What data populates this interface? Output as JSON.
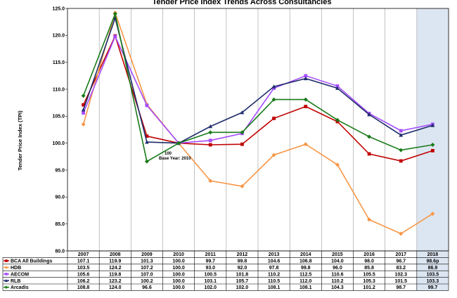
{
  "chart_data": {
    "type": "line",
    "title": "Tender Price Index Trends Across Consultancies",
    "ylabel": "Tender Price Index (TPI)",
    "ylim": [
      80,
      125
    ],
    "yticks": [
      "80.0",
      "85.0",
      "90.0",
      "95.0",
      "100.0",
      "105.0",
      "110.0",
      "115.0",
      "120.0",
      "125.0"
    ],
    "categories": [
      "2007",
      "2008",
      "2009",
      "2010",
      "2011",
      "2012",
      "2013",
      "2014",
      "2015",
      "2016",
      "2017",
      "2018"
    ],
    "highlight_category": "2018",
    "annotation": {
      "category": "2010",
      "line1": "100",
      "line2": "Base Year: 2010"
    },
    "series": [
      {
        "name": "BCA All Buildings",
        "color": "#c00000",
        "marker": "square",
        "values": [
          107.1,
          119.9,
          101.3,
          100.0,
          99.7,
          99.8,
          104.6,
          106.8,
          104.0,
          98.0,
          96.7,
          98.6
        ],
        "labels": [
          "107.1",
          "119.9",
          "101.3",
          "100.0",
          "99.7",
          "99.8",
          "104.6",
          "106.8",
          "104.0",
          "98.0",
          "96.7",
          "98.6p"
        ]
      },
      {
        "name": "HDB",
        "color": "#f79646",
        "marker": "diamond",
        "values": [
          103.5,
          124.2,
          107.2,
          100.0,
          93.0,
          92.0,
          97.8,
          99.8,
          96.0,
          85.8,
          83.2,
          86.9
        ],
        "labels": [
          "103.5",
          "124.2",
          "107.2",
          "100.0",
          "93.0",
          "92.0",
          "97.8",
          "99.8",
          "96.0",
          "85.8",
          "83.2",
          "86.9"
        ]
      },
      {
        "name": "AECOM",
        "color": "#a64dff",
        "marker": "square",
        "values": [
          105.6,
          119.8,
          107.0,
          100.0,
          100.5,
          101.8,
          110.2,
          112.5,
          110.6,
          105.5,
          102.3,
          103.5
        ],
        "labels": [
          "105.6",
          "119.8",
          "107.0",
          "100.0",
          "100.5",
          "101.8",
          "110.2",
          "112.5",
          "110.6",
          "105.5",
          "102.3",
          "103.5"
        ]
      },
      {
        "name": "RLB",
        "color": "#1f2d6b",
        "marker": "triangle",
        "values": [
          106.2,
          123.2,
          100.2,
          100.0,
          103.1,
          105.7,
          110.5,
          112.0,
          110.2,
          105.3,
          101.5,
          103.3
        ],
        "labels": [
          "106.2",
          "123.2",
          "100.2",
          "100.0",
          "103.1",
          "105.7",
          "110.5",
          "112.0",
          "110.2",
          "105.3",
          "101.5",
          "103.3"
        ]
      },
      {
        "name": "Arcadis",
        "color": "#1a7a1a",
        "marker": "diamond",
        "values": [
          108.8,
          124.0,
          96.6,
          100.0,
          102.0,
          102.0,
          108.1,
          108.1,
          104.3,
          101.2,
          98.7,
          99.7
        ],
        "labels": [
          "108.8",
          "124.0",
          "96.6",
          "100.0",
          "102.0",
          "102.0",
          "108.1",
          "108.1",
          "104.3",
          "101.2",
          "98.7",
          "99.7"
        ]
      }
    ]
  }
}
